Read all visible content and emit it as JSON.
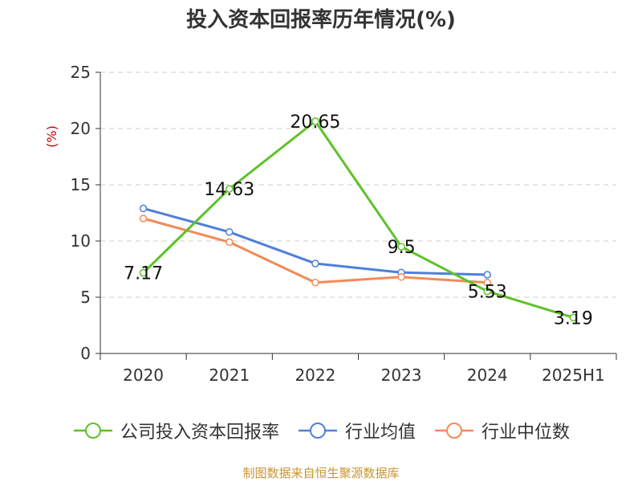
{
  "title": "投入资本回报率历年情况(%)",
  "source": "制图数据来自恒生聚源数据库",
  "chart_data": {
    "type": "line",
    "title": "投入资本回报率历年情况(%)",
    "ylabel": "(%)",
    "xlabel": "",
    "categories": [
      "2020",
      "2021",
      "2022",
      "2023",
      "2024",
      "2025H1"
    ],
    "ylim": [
      0,
      25
    ],
    "yticks": [
      0,
      5,
      10,
      15,
      20,
      25
    ],
    "grid": true,
    "legend_position": "bottom",
    "series": [
      {
        "name": "公司投入资本回报率",
        "color": "#5ec229",
        "values": [
          7.17,
          14.63,
          20.65,
          9.5,
          5.53,
          3.19
        ],
        "labels": [
          "7.17",
          "14.63",
          "20.65",
          "9.5",
          "5.53",
          "3.19"
        ]
      },
      {
        "name": "行业均值",
        "color": "#4f7fdc",
        "values": [
          12.9,
          10.8,
          8.0,
          7.2,
          7.0,
          null
        ]
      },
      {
        "name": "行业中位数",
        "color": "#f28a58",
        "values": [
          12.0,
          9.9,
          6.3,
          6.8,
          6.3,
          null
        ]
      }
    ]
  }
}
